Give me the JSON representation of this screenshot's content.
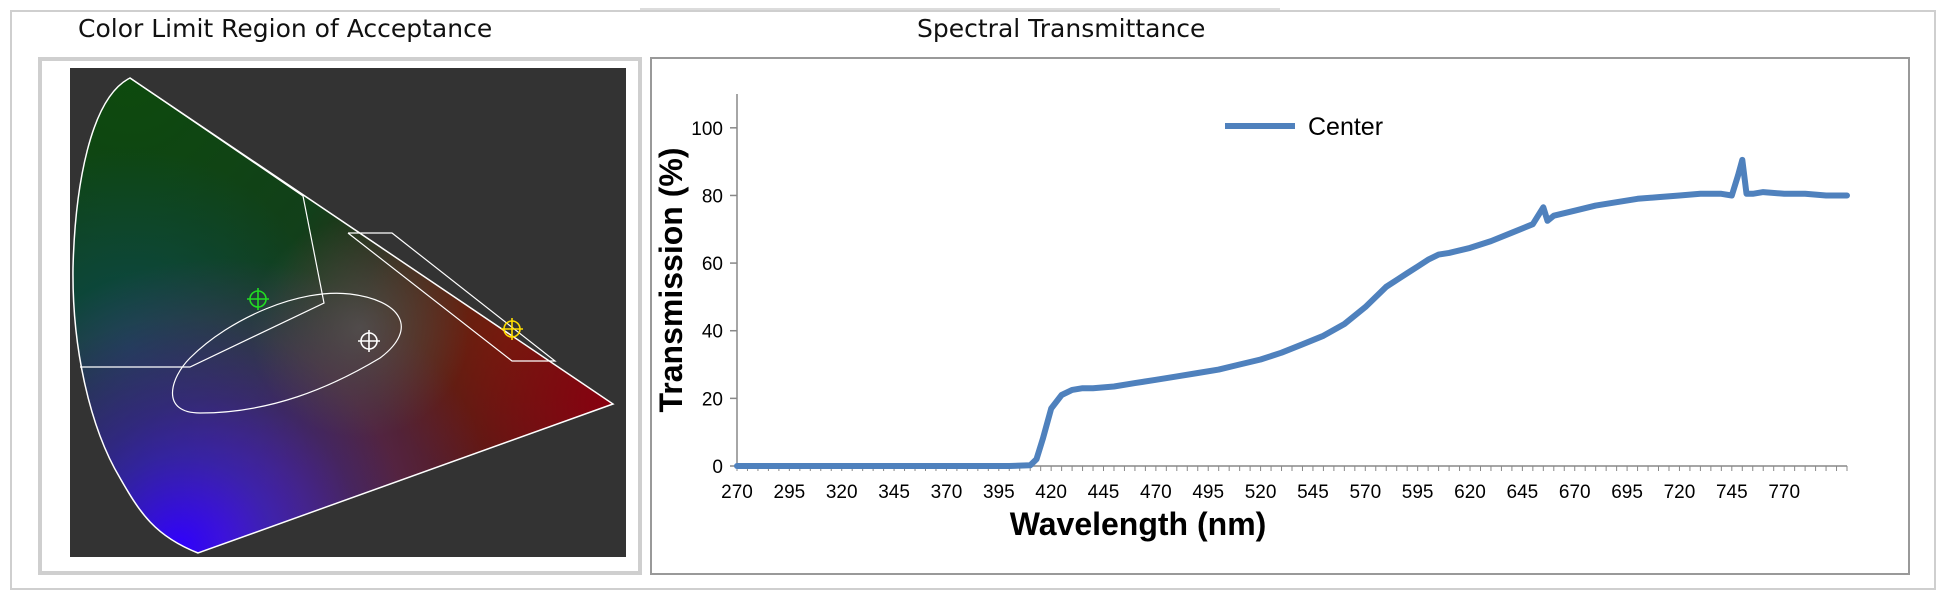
{
  "cie_panel": {
    "title": "Color Limit Region of Acceptance",
    "background": "#333333",
    "markers": [
      {
        "name": "green-target",
        "color": "#22dd22"
      },
      {
        "name": "white-target",
        "color": "#ffffff"
      },
      {
        "name": "yellow-target",
        "color": "#ffdd00"
      }
    ]
  },
  "spectral_panel": {
    "title": "Spectral Transmittance"
  },
  "chart_data": {
    "type": "line",
    "xlabel": "Wavelength (nm)",
    "ylabel": "Transmission (%)",
    "xlim": [
      270,
      800
    ],
    "ylim": [
      0,
      110
    ],
    "x_ticks": [
      270,
      295,
      320,
      345,
      370,
      395,
      420,
      445,
      470,
      495,
      520,
      545,
      570,
      595,
      620,
      645,
      670,
      695,
      720,
      745,
      770
    ],
    "y_ticks": [
      0,
      20,
      40,
      60,
      80,
      100
    ],
    "grid": false,
    "legend": "top-center",
    "series": [
      {
        "name": "Center",
        "color": "#4f81bd",
        "x": [
          270,
          300,
          350,
          400,
          410,
          413,
          416,
          420,
          425,
          430,
          435,
          440,
          450,
          460,
          470,
          480,
          490,
          500,
          510,
          520,
          530,
          540,
          550,
          560,
          570,
          580,
          590,
          595,
          600,
          605,
          610,
          620,
          630,
          640,
          650,
          655,
          657,
          660,
          670,
          680,
          690,
          700,
          710,
          720,
          730,
          740,
          745,
          748,
          750,
          752,
          755,
          760,
          770,
          780,
          790,
          800
        ],
        "y": [
          0,
          0,
          0,
          0,
          0.2,
          2,
          8,
          17,
          21,
          22.5,
          23,
          23,
          23.5,
          24.5,
          25.5,
          26.5,
          27.5,
          28.5,
          30,
          31.5,
          33.5,
          36,
          38.5,
          42,
          47,
          53,
          57,
          59,
          61,
          62.5,
          63,
          64.5,
          66.5,
          69,
          71.5,
          76.5,
          72.5,
          74,
          75.5,
          77,
          78,
          79,
          79.5,
          80,
          80.5,
          80.5,
          80,
          86,
          90.5,
          80.5,
          80.5,
          81,
          80.5,
          80.5,
          80,
          80
        ]
      }
    ]
  }
}
